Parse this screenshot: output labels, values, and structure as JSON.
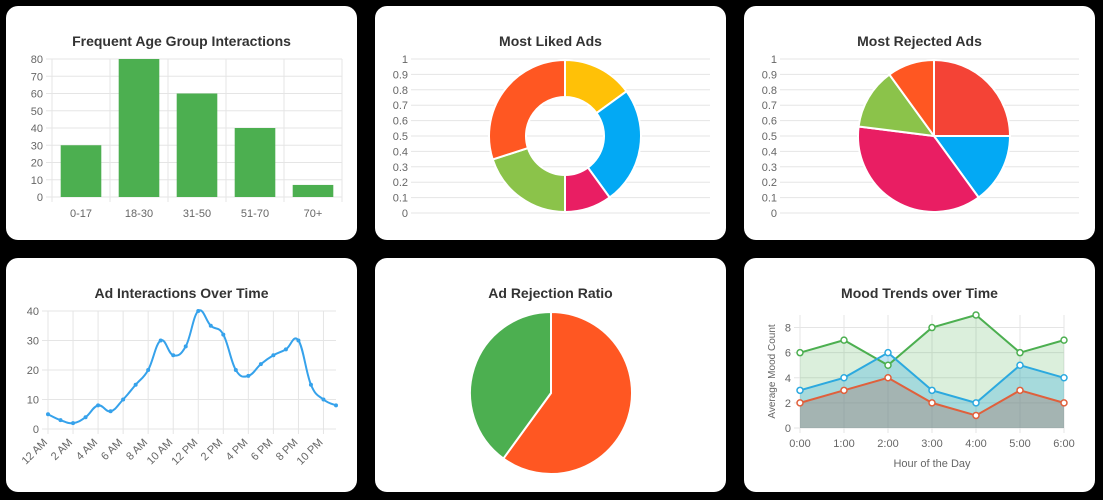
{
  "charts": [
    {
      "id": "age",
      "title": "Frequent Age Group Interactions",
      "chart_data": {
        "type": "bar",
        "title": "Frequent Age Group Interactions",
        "categories": [
          "0-17",
          "18-30",
          "31-50",
          "51-70",
          "70+"
        ],
        "values": [
          30,
          80,
          60,
          40,
          7
        ],
        "ylim": [
          0,
          80
        ],
        "yticks": [
          0,
          10,
          20,
          30,
          40,
          50,
          60,
          70,
          80
        ],
        "color": "#4caf50",
        "grid": true
      }
    },
    {
      "id": "liked",
      "title": "Most Liked Ads",
      "chart_data": {
        "type": "pie",
        "variant": "doughnut",
        "title": "Most Liked Ads",
        "values": [
          15,
          25,
          10,
          20,
          30
        ],
        "colors": [
          "#ffc107",
          "#03a9f4",
          "#e91e63",
          "#8bc34a",
          "#ff5722"
        ],
        "yticks": [
          0,
          0.1,
          0.2,
          0.3,
          0.4,
          0.5,
          0.6,
          0.7,
          0.8,
          0.9,
          1
        ],
        "grid": true
      }
    },
    {
      "id": "rejected",
      "title": "Most Rejected Ads",
      "chart_data": {
        "type": "pie",
        "title": "Most Rejected Ads",
        "values": [
          25,
          15,
          37,
          13,
          10
        ],
        "colors": [
          "#f44336",
          "#03a9f4",
          "#e91e63",
          "#8bc34a",
          "#ff5722"
        ],
        "yticks": [
          0,
          0.1,
          0.2,
          0.3,
          0.4,
          0.5,
          0.6,
          0.7,
          0.8,
          0.9,
          1
        ],
        "grid": true
      }
    },
    {
      "id": "interactions",
      "title": "Ad Interactions Over Time",
      "chart_data": {
        "type": "line",
        "title": "Ad Interactions Over Time",
        "x": [
          "12 AM",
          "1 AM",
          "2 AM",
          "3 AM",
          "4 AM",
          "5 AM",
          "6 AM",
          "7 AM",
          "8 AM",
          "9 AM",
          "10 AM",
          "11 AM",
          "12 PM",
          "1 PM",
          "2 PM",
          "3 PM",
          "4 PM",
          "5 PM",
          "6 PM",
          "7 PM",
          "8 PM",
          "9 PM",
          "10 PM",
          "11 PM"
        ],
        "xticks": [
          "12 AM",
          "2 AM",
          "4 AM",
          "6 AM",
          "8 AM",
          "10 AM",
          "12 PM",
          "2 PM",
          "4 PM",
          "6 PM",
          "8 PM",
          "10 PM"
        ],
        "values": [
          5,
          3,
          2,
          4,
          8,
          6,
          10,
          15,
          20,
          30,
          25,
          28,
          40,
          35,
          32,
          20,
          18,
          22,
          25,
          27,
          30,
          15,
          10,
          8
        ],
        "ylim": [
          0,
          40
        ],
        "yticks": [
          0,
          10,
          20,
          30,
          40
        ],
        "color": "#36a2eb",
        "grid": true
      }
    },
    {
      "id": "ratio",
      "title": "Ad Rejection Ratio",
      "chart_data": {
        "type": "pie",
        "title": "Ad Rejection Ratio",
        "values": [
          60,
          40
        ],
        "colors": [
          "#ff5722",
          "#4caf50"
        ]
      }
    },
    {
      "id": "mood",
      "title": "Mood Trends over Time",
      "chart_data": {
        "type": "area",
        "title": "Mood Trends over Time",
        "xlabel": "Hour of the Day",
        "ylabel": "Average Mood Count",
        "categories": [
          "0:00",
          "1:00",
          "2:00",
          "3:00",
          "4:00",
          "5:00",
          "6:00"
        ],
        "ylim": [
          0,
          9
        ],
        "yticks": [
          0,
          2,
          4,
          6,
          8
        ],
        "series": [
          {
            "values": [
              6,
              7,
              5,
              8,
              9,
              6,
              7
            ],
            "color": "#4caf50",
            "fill": "rgba(76,175,80,0.2)"
          },
          {
            "values": [
              3,
              4,
              6,
              3,
              2,
              5,
              4
            ],
            "color": "#2ca9df",
            "fill": "rgba(44,169,223,0.3)"
          },
          {
            "values": [
              2,
              3,
              4,
              2,
              1,
              3,
              2
            ],
            "color": "#e0603c",
            "fill": "rgba(160,110,100,0.35)"
          }
        ],
        "grid": true
      }
    }
  ]
}
